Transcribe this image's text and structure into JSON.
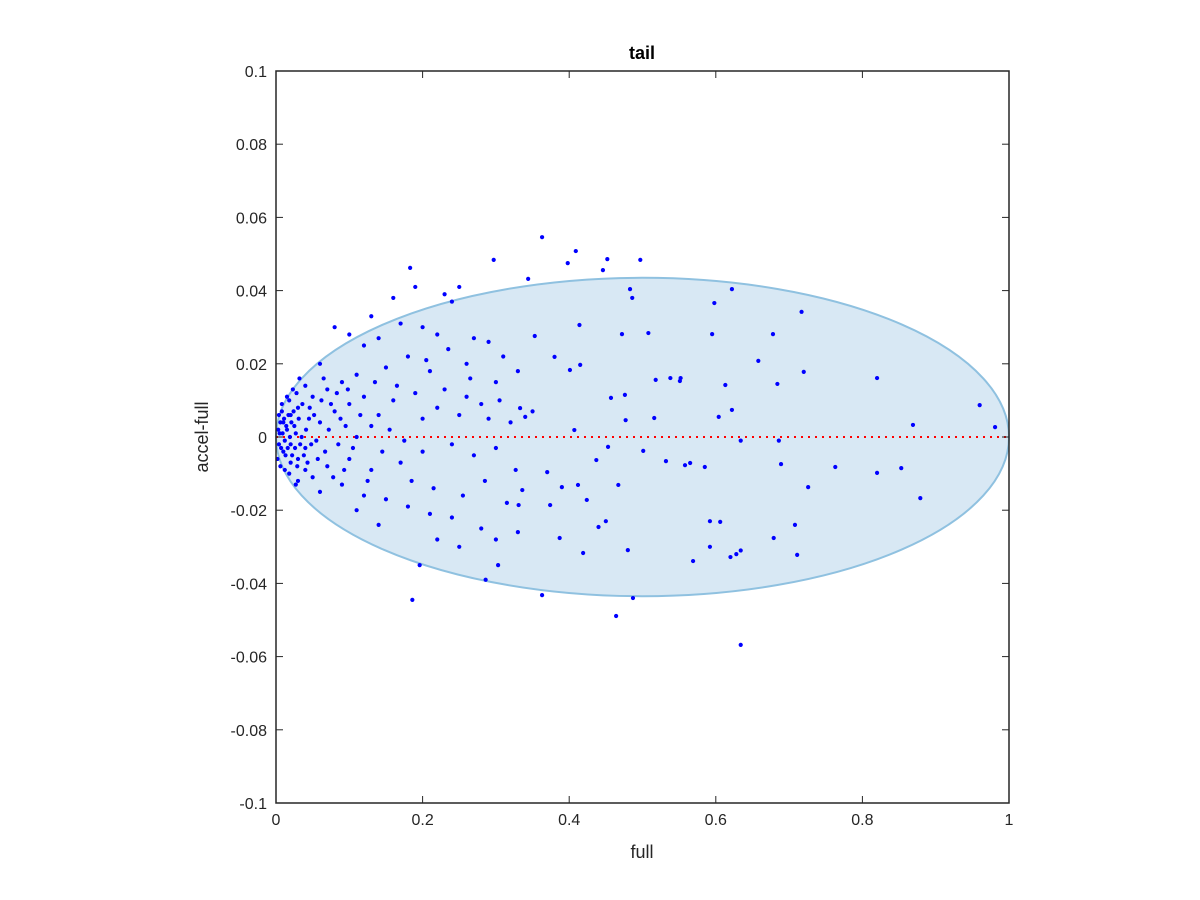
{
  "chart_data": {
    "type": "scatter",
    "title": "tail",
    "xlabel": "full",
    "ylabel": "accel-full",
    "xlim": [
      0,
      1
    ],
    "ylim": [
      -0.1,
      0.1
    ],
    "xticks": [
      "0",
      "0.2",
      "0.4",
      "0.6",
      "0.8",
      "1"
    ],
    "xtick_values": [
      0,
      0.2,
      0.4,
      0.6,
      0.8,
      1
    ],
    "yticks": [
      "-0.1",
      "-0.08",
      "-0.06",
      "-0.04",
      "-0.02",
      "0",
      "0.02",
      "0.04",
      "0.06",
      "0.08",
      "0.1"
    ],
    "ytick_values": [
      -0.1,
      -0.08,
      -0.06,
      -0.04,
      -0.02,
      0,
      0.02,
      0.04,
      0.06,
      0.08,
      0.1
    ],
    "grid": false,
    "colors": {
      "points": "#0000ff",
      "ellipse_fill": "#d8e8f4",
      "ellipse_edge": "#8fc1e0",
      "zero_line": "#ff0000"
    },
    "ellipse": {
      "center": [
        0.5,
        0.0
      ],
      "semi_axes": [
        0.5,
        0.0435
      ]
    },
    "reference_line": {
      "y": 0,
      "style": "dotted"
    },
    "points": [
      [
        0.363,
        0.0546
      ],
      [
        0.409,
        0.0508
      ],
      [
        0.398,
        0.0475
      ],
      [
        0.452,
        0.0486
      ],
      [
        0.497,
        0.0484
      ],
      [
        0.297,
        0.0484
      ],
      [
        0.183,
        0.0462
      ],
      [
        0.344,
        0.0432
      ],
      [
        0.446,
        0.0456
      ],
      [
        0.483,
        0.0404
      ],
      [
        0.486,
        0.038
      ],
      [
        0.598,
        0.0366
      ],
      [
        0.717,
        0.0342
      ],
      [
        0.622,
        0.0404
      ],
      [
        0.414,
        0.0306
      ],
      [
        0.472,
        0.0281
      ],
      [
        0.678,
        0.0281
      ],
      [
        0.508,
        0.0284
      ],
      [
        0.551,
        0.0153
      ],
      [
        0.595,
        0.0281
      ],
      [
        0.658,
        0.0208
      ],
      [
        0.72,
        0.0178
      ],
      [
        0.82,
        0.0161
      ],
      [
        0.96,
        0.0087
      ],
      [
        0.981,
        0.0027
      ],
      [
        0.869,
        0.0033
      ],
      [
        0.684,
        0.0145
      ],
      [
        0.763,
        -0.0082
      ],
      [
        0.82,
        -0.0098
      ],
      [
        0.853,
        -0.0085
      ],
      [
        0.879,
        -0.0167
      ],
      [
        0.726,
        -0.0137
      ],
      [
        0.689,
        -0.0074
      ],
      [
        0.592,
        -0.023
      ],
      [
        0.606,
        -0.0232
      ],
      [
        0.708,
        -0.024
      ],
      [
        0.711,
        -0.0322
      ],
      [
        0.679,
        -0.0276
      ],
      [
        0.634,
        -0.031
      ],
      [
        0.628,
        -0.032
      ],
      [
        0.569,
        -0.0339
      ],
      [
        0.592,
        -0.03
      ],
      [
        0.62,
        -0.0328
      ],
      [
        0.634,
        -0.0568
      ],
      [
        0.464,
        -0.0489
      ],
      [
        0.487,
        -0.044
      ],
      [
        0.363,
        -0.0432
      ],
      [
        0.186,
        -0.0445
      ],
      [
        0.286,
        -0.039
      ],
      [
        0.303,
        -0.035
      ],
      [
        0.196,
        -0.035
      ],
      [
        0.48,
        -0.0309
      ],
      [
        0.419,
        -0.0317
      ],
      [
        0.387,
        -0.0276
      ],
      [
        0.634,
        -0.001
      ],
      [
        0.686,
        -0.001
      ],
      [
        0.532,
        -0.0066
      ],
      [
        0.501,
        -0.0038
      ],
      [
        0.437,
        -0.0063
      ],
      [
        0.424,
        -0.0172
      ],
      [
        0.467,
        -0.0131
      ],
      [
        0.37,
        -0.0096
      ],
      [
        0.412,
        -0.0131
      ],
      [
        0.538,
        0.0161
      ],
      [
        0.518,
        0.0156
      ],
      [
        0.552,
        0.0161
      ],
      [
        0.613,
        0.0142
      ],
      [
        0.622,
        0.0074
      ],
      [
        0.604,
        0.0055
      ],
      [
        0.516,
        0.0052
      ],
      [
        0.476,
        0.0115
      ],
      [
        0.457,
        0.0107
      ],
      [
        0.415,
        0.0197
      ],
      [
        0.38,
        0.0219
      ],
      [
        0.353,
        0.0276
      ],
      [
        0.401,
        0.0183
      ],
      [
        0.477,
        0.0046
      ],
      [
        0.558,
        -0.0077
      ],
      [
        0.585,
        -0.0082
      ],
      [
        0.565,
        -0.0071
      ],
      [
        0.374,
        -0.0186
      ],
      [
        0.44,
        -0.0246
      ],
      [
        0.45,
        -0.023
      ],
      [
        0.39,
        -0.0137
      ],
      [
        0.453,
        -0.0027
      ],
      [
        0.407,
        0.0019
      ],
      [
        0.34,
        0.0055
      ],
      [
        0.333,
        0.0079
      ],
      [
        0.327,
        -0.009
      ],
      [
        0.336,
        -0.0145
      ],
      [
        0.331,
        -0.0186
      ],
      [
        0.19,
        0.041
      ],
      [
        0.23,
        0.039
      ],
      [
        0.24,
        0.037
      ],
      [
        0.25,
        0.041
      ],
      [
        0.13,
        0.033
      ],
      [
        0.16,
        0.038
      ],
      [
        0.08,
        0.03
      ],
      [
        0.1,
        0.028
      ],
      [
        0.06,
        0.02
      ],
      [
        0.04,
        0.014
      ],
      [
        0.12,
        0.025
      ],
      [
        0.14,
        0.027
      ],
      [
        0.17,
        0.031
      ],
      [
        0.2,
        0.03
      ],
      [
        0.22,
        0.028
      ],
      [
        0.27,
        0.027
      ],
      [
        0.29,
        0.026
      ],
      [
        0.31,
        0.022
      ],
      [
        0.33,
        0.018
      ],
      [
        0.3,
        0.015
      ],
      [
        0.26,
        0.02
      ],
      [
        0.21,
        0.018
      ],
      [
        0.18,
        0.022
      ],
      [
        0.15,
        0.019
      ],
      [
        0.11,
        0.017
      ],
      [
        0.09,
        0.015
      ],
      [
        0.07,
        0.013
      ],
      [
        0.05,
        0.011
      ],
      [
        0.03,
        0.008
      ],
      [
        0.02,
        0.006
      ],
      [
        0.01,
        0.004
      ],
      [
        0.015,
        0.002
      ],
      [
        0.005,
        0.001
      ],
      [
        0.02,
        -0.002
      ],
      [
        0.01,
        -0.004
      ],
      [
        0.03,
        -0.006
      ],
      [
        0.04,
        -0.003
      ],
      [
        0.06,
        0.004
      ],
      [
        0.08,
        0.007
      ],
      [
        0.1,
        0.009
      ],
      [
        0.12,
        0.011
      ],
      [
        0.14,
        0.006
      ],
      [
        0.16,
        0.01
      ],
      [
        0.19,
        0.012
      ],
      [
        0.22,
        0.008
      ],
      [
        0.25,
        0.006
      ],
      [
        0.28,
        0.009
      ],
      [
        0.32,
        0.004
      ],
      [
        0.35,
        0.007
      ],
      [
        0.3,
        -0.003
      ],
      [
        0.27,
        -0.005
      ],
      [
        0.24,
        -0.002
      ],
      [
        0.2,
        -0.004
      ],
      [
        0.17,
        -0.007
      ],
      [
        0.13,
        -0.009
      ],
      [
        0.1,
        -0.006
      ],
      [
        0.07,
        -0.008
      ],
      [
        0.05,
        -0.011
      ],
      [
        0.03,
        -0.012
      ],
      [
        0.09,
        -0.013
      ],
      [
        0.12,
        -0.016
      ],
      [
        0.15,
        -0.017
      ],
      [
        0.18,
        -0.019
      ],
      [
        0.21,
        -0.021
      ],
      [
        0.24,
        -0.022
      ],
      [
        0.28,
        -0.025
      ],
      [
        0.3,
        -0.028
      ],
      [
        0.33,
        -0.026
      ],
      [
        0.25,
        -0.03
      ],
      [
        0.22,
        -0.028
      ],
      [
        0.14,
        -0.024
      ],
      [
        0.11,
        -0.02
      ],
      [
        0.06,
        -0.015
      ],
      [
        0.04,
        -0.009
      ],
      [
        0.02,
        -0.007
      ],
      [
        0.008,
        0.007
      ],
      [
        0.012,
        -0.001
      ],
      [
        0.025,
        0.003
      ],
      [
        0.035,
        0.0
      ],
      [
        0.045,
        0.005
      ],
      [
        0.055,
        -0.001
      ],
      [
        0.018,
        0.01
      ],
      [
        0.028,
        0.012
      ],
      [
        0.065,
        0.016
      ],
      [
        0.075,
        0.009
      ],
      [
        0.085,
        -0.002
      ],
      [
        0.095,
        0.003
      ],
      [
        0.11,
        0.0
      ],
      [
        0.13,
        0.003
      ],
      [
        0.155,
        0.002
      ],
      [
        0.175,
        -0.001
      ],
      [
        0.2,
        0.005
      ],
      [
        0.23,
        0.013
      ],
      [
        0.26,
        0.011
      ],
      [
        0.29,
        0.005
      ],
      [
        0.003,
        0.002
      ],
      [
        0.004,
        -0.002
      ],
      [
        0.006,
        0.004
      ],
      [
        0.007,
        -0.003
      ],
      [
        0.009,
        0.001
      ],
      [
        0.011,
        0.005
      ],
      [
        0.013,
        -0.005
      ],
      [
        0.014,
        0.003
      ],
      [
        0.016,
        -0.003
      ],
      [
        0.017,
        0.006
      ],
      [
        0.019,
        0.0
      ],
      [
        0.021,
        0.004
      ],
      [
        0.022,
        -0.005
      ],
      [
        0.024,
        0.007
      ],
      [
        0.026,
        -0.003
      ],
      [
        0.027,
        0.001
      ],
      [
        0.029,
        -0.008
      ],
      [
        0.031,
        0.005
      ],
      [
        0.033,
        -0.002
      ],
      [
        0.036,
        0.009
      ],
      [
        0.038,
        -0.005
      ],
      [
        0.041,
        0.002
      ],
      [
        0.043,
        -0.007
      ],
      [
        0.046,
        0.008
      ],
      [
        0.048,
        -0.002
      ],
      [
        0.052,
        0.006
      ],
      [
        0.057,
        -0.006
      ],
      [
        0.062,
        0.01
      ],
      [
        0.067,
        -0.004
      ],
      [
        0.072,
        0.002
      ],
      [
        0.078,
        -0.011
      ],
      [
        0.083,
        0.012
      ],
      [
        0.088,
        0.005
      ],
      [
        0.093,
        -0.009
      ],
      [
        0.098,
        0.013
      ],
      [
        0.105,
        -0.003
      ],
      [
        0.115,
        0.006
      ],
      [
        0.125,
        -0.012
      ],
      [
        0.135,
        0.015
      ],
      [
        0.145,
        -0.004
      ],
      [
        0.165,
        0.014
      ],
      [
        0.185,
        -0.012
      ],
      [
        0.205,
        0.021
      ],
      [
        0.215,
        -0.014
      ],
      [
        0.235,
        0.024
      ],
      [
        0.255,
        -0.016
      ],
      [
        0.265,
        0.016
      ],
      [
        0.285,
        -0.012
      ],
      [
        0.305,
        0.01
      ],
      [
        0.315,
        -0.018
      ],
      [
        0.002,
        -0.006
      ],
      [
        0.004,
        0.006
      ],
      [
        0.006,
        -0.008
      ],
      [
        0.008,
        0.009
      ],
      [
        0.012,
        -0.009
      ],
      [
        0.015,
        0.011
      ],
      [
        0.018,
        -0.01
      ],
      [
        0.023,
        0.013
      ],
      [
        0.027,
        -0.013
      ],
      [
        0.032,
        0.016
      ]
    ]
  }
}
